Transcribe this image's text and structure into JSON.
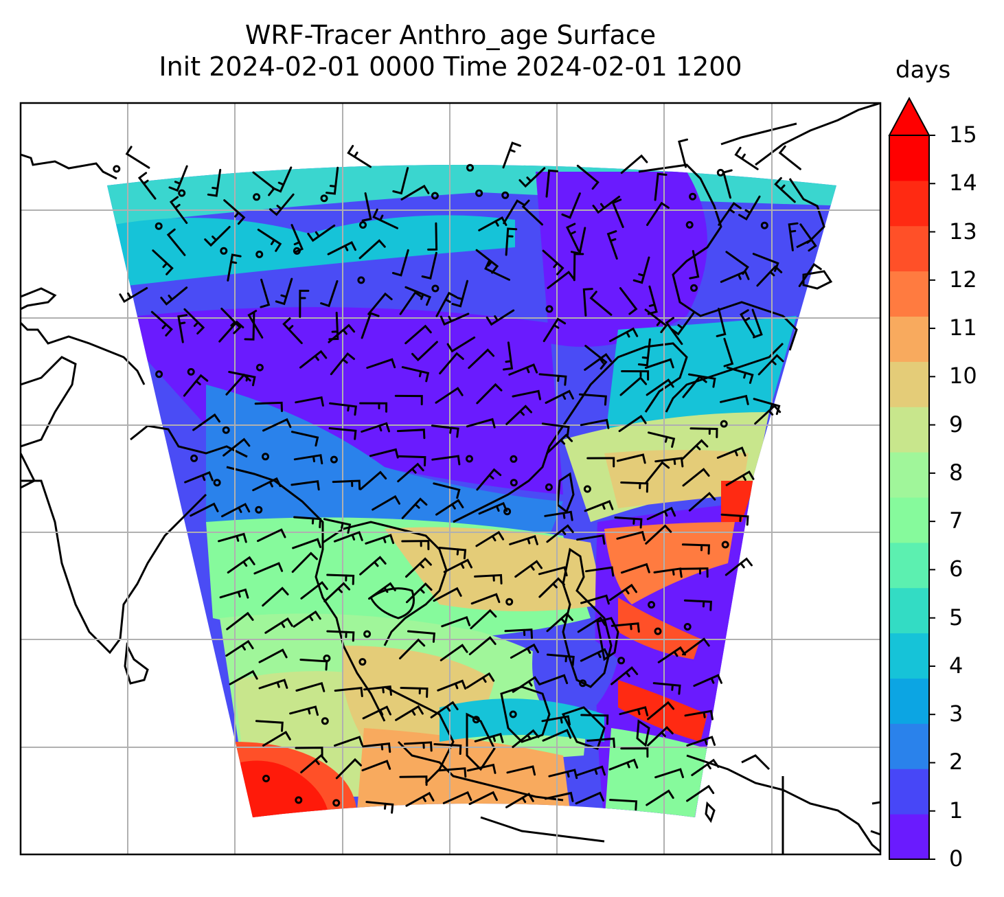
{
  "title": {
    "line1": "WRF-Tracer Anthro_age Surface",
    "line2": "Init 2024-02-01 0000 Time 2024-02-01 1200"
  },
  "colorbar": {
    "label": "days",
    "ticks": [
      "0",
      "1",
      "2",
      "3",
      "4",
      "5",
      "6",
      "7",
      "8",
      "9",
      "10",
      "11",
      "12",
      "13",
      "14",
      "15"
    ],
    "extend": "max",
    "colors": [
      "#6a1bfe",
      "#4747f7",
      "#2a82eb",
      "#0ca5e3",
      "#16c3d8",
      "#33dcc4",
      "#5cf0b0",
      "#86fa9c",
      "#a0f69a",
      "#c8e68c",
      "#e4cc78",
      "#f8aa5e",
      "#ff7b40",
      "#ff5028",
      "#ff2a12",
      "#ff0000"
    ]
  },
  "map": {
    "projection": "Lambert conformal",
    "domain": "South / East Asia with Maritime Continent",
    "field": "Anthro_age",
    "overlay": "wind barbs",
    "gridlines": true
  }
}
